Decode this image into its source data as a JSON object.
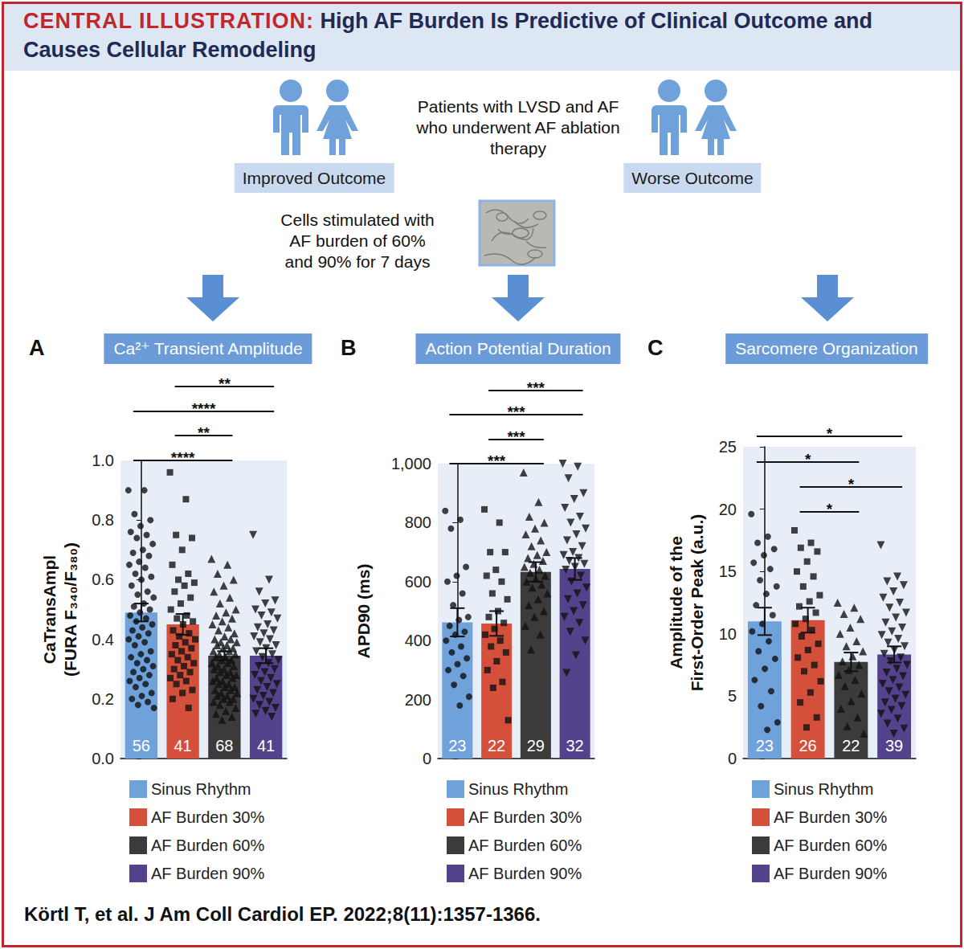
{
  "header": {
    "label": "CENTRAL ILLUSTRATION:",
    "title": "High AF Burden Is Predictive of Clinical Outcome and Causes Cellular Remodeling"
  },
  "diagram": {
    "cohort": "Patients with LVSD and AF who underwent AF ablation therapy",
    "outcomes": [
      "Improved Outcome",
      "Worse Outcome"
    ],
    "stimulation": "Cells stimulated with AF burden of 60% and 90% for 7 days"
  },
  "chart_data": [
    {
      "type": "bar",
      "panel": "A",
      "title": "Ca²⁺ Transient Amplitude",
      "ylabel": [
        "CaTransAmpl",
        "(FURA F₃₄₀/F₃₈₀)"
      ],
      "ylim": [
        0,
        1
      ],
      "yticks": [
        {
          "value": 0,
          "label": "0.0"
        },
        0.2,
        0.4,
        0.6,
        0.8,
        {
          "value": 1,
          "label": "1.0"
        }
      ],
      "grid": false,
      "legend": "bottom",
      "tick_labels": "y",
      "data_labels": false,
      "series": [
        {
          "name": "Sinus Rhythm",
          "color": "#6fa1db",
          "marker": "circle",
          "values": [
            0.49
          ],
          "errors": [
            0.03
          ],
          "n": [
            56
          ],
          "points": [
            0.9,
            0.9,
            0.82,
            0.8,
            0.78,
            0.76,
            0.75,
            0.74,
            0.72,
            0.7,
            0.69,
            0.68,
            0.66,
            0.65,
            0.64,
            0.62,
            0.61,
            0.6,
            0.58,
            0.56,
            0.55,
            0.54,
            0.52,
            0.51,
            0.5,
            0.49,
            0.48,
            0.47,
            0.46,
            0.45,
            0.44,
            0.43,
            0.42,
            0.41,
            0.4,
            0.39,
            0.38,
            0.36,
            0.35,
            0.34,
            0.33,
            0.32,
            0.31,
            0.3,
            0.29,
            0.28,
            0.27,
            0.26,
            0.25,
            0.24,
            0.22,
            0.21,
            0.2,
            0.19,
            0.18,
            0.17
          ]
        },
        {
          "name": "AF Burden 30%",
          "color": "#d5503a",
          "marker": "square",
          "values": [
            0.45
          ],
          "errors": [
            0.035
          ],
          "n": [
            41
          ],
          "points": [
            0.96,
            0.87,
            0.75,
            0.74,
            0.7,
            0.65,
            0.62,
            0.6,
            0.59,
            0.58,
            0.56,
            0.54,
            0.52,
            0.5,
            0.48,
            0.47,
            0.46,
            0.45,
            0.43,
            0.42,
            0.41,
            0.4,
            0.39,
            0.38,
            0.37,
            0.36,
            0.35,
            0.34,
            0.33,
            0.32,
            0.31,
            0.3,
            0.29,
            0.28,
            0.27,
            0.26,
            0.25,
            0.23,
            0.22,
            0.2,
            0.17
          ]
        },
        {
          "name": "AF Burden 60%",
          "color": "#3b3b3b",
          "marker": "triangle",
          "values": [
            0.345
          ],
          "errors": [
            0.015
          ],
          "n": [
            68
          ],
          "points": [
            0.67,
            0.65,
            0.62,
            0.6,
            0.58,
            0.56,
            0.54,
            0.52,
            0.5,
            0.49,
            0.48,
            0.47,
            0.46,
            0.45,
            0.44,
            0.43,
            0.42,
            0.41,
            0.4,
            0.4,
            0.39,
            0.39,
            0.38,
            0.38,
            0.37,
            0.37,
            0.36,
            0.36,
            0.35,
            0.35,
            0.34,
            0.34,
            0.33,
            0.33,
            0.32,
            0.32,
            0.31,
            0.31,
            0.3,
            0.3,
            0.29,
            0.29,
            0.28,
            0.28,
            0.27,
            0.27,
            0.26,
            0.26,
            0.25,
            0.25,
            0.24,
            0.24,
            0.23,
            0.23,
            0.22,
            0.22,
            0.21,
            0.21,
            0.2,
            0.2,
            0.19,
            0.19,
            0.18,
            0.17,
            0.16,
            0.15,
            0.14,
            0.13
          ]
        },
        {
          "name": "AF Burden 90%",
          "color": "#54438c",
          "marker": "triangle_down",
          "values": [
            0.345
          ],
          "errors": [
            0.025
          ],
          "n": [
            41
          ],
          "points": [
            0.75,
            0.6,
            0.56,
            0.53,
            0.52,
            0.5,
            0.49,
            0.48,
            0.47,
            0.45,
            0.44,
            0.43,
            0.42,
            0.41,
            0.4,
            0.39,
            0.38,
            0.37,
            0.36,
            0.35,
            0.34,
            0.33,
            0.32,
            0.31,
            0.3,
            0.29,
            0.28,
            0.27,
            0.26,
            0.25,
            0.24,
            0.23,
            0.22,
            0.21,
            0.2,
            0.19,
            0.18,
            0.17,
            0.16,
            0.15,
            0.14
          ]
        }
      ],
      "annotations": [
        {
          "from": 1,
          "to": 3,
          "label": "**"
        },
        {
          "from": 0,
          "to": 3,
          "label": "****"
        },
        {
          "from": 1,
          "to": 2,
          "label": "**"
        },
        {
          "from": 0,
          "to": 2,
          "label": "****"
        }
      ]
    },
    {
      "type": "bar",
      "panel": "B",
      "title": "Action Potential Duration",
      "ylabel": [
        "APD90 (ms)"
      ],
      "ylim": [
        0,
        1000
      ],
      "yticks": [
        0,
        200,
        400,
        600,
        800,
        {
          "value": 1000,
          "label": "1,000"
        }
      ],
      "grid": false,
      "legend": "bottom",
      "tick_labels": "y",
      "data_labels": false,
      "series": [
        {
          "name": "Sinus Rhythm",
          "color": "#6fa1db",
          "marker": "circle",
          "values": [
            462
          ],
          "errors": [
            48
          ],
          "n": [
            23
          ],
          "points": [
            840,
            810,
            780,
            650,
            620,
            600,
            560,
            520,
            480,
            470,
            450,
            430,
            420,
            400,
            380,
            360,
            340,
            320,
            300,
            280,
            250,
            210,
            180
          ]
        },
        {
          "name": "AF Burden 30%",
          "color": "#d5503a",
          "marker": "square",
          "values": [
            458
          ],
          "errors": [
            42
          ],
          "n": [
            22
          ],
          "points": [
            845,
            800,
            700,
            700,
            640,
            620,
            600,
            560,
            540,
            500,
            480,
            460,
            440,
            420,
            400,
            380,
            360,
            330,
            300,
            260,
            240,
            130
          ]
        },
        {
          "name": "AF Burden 60%",
          "color": "#3b3b3b",
          "marker": "triangle",
          "values": [
            633
          ],
          "errors": [
            33
          ],
          "n": [
            29
          ],
          "points": [
            970,
            870,
            820,
            800,
            780,
            760,
            740,
            720,
            700,
            690,
            680,
            670,
            660,
            650,
            640,
            630,
            620,
            610,
            600,
            590,
            580,
            560,
            540,
            520,
            500,
            480,
            450,
            420,
            370
          ]
        },
        {
          "name": "AF Burden 90%",
          "color": "#54438c",
          "marker": "triangle_down",
          "values": [
            643
          ],
          "errors": [
            37
          ],
          "n": [
            32
          ],
          "points": [
            1000,
            990,
            950,
            900,
            880,
            850,
            820,
            800,
            780,
            760,
            740,
            720,
            700,
            690,
            680,
            670,
            660,
            650,
            640,
            620,
            600,
            580,
            560,
            540,
            520,
            500,
            480,
            460,
            430,
            400,
            350,
            290
          ]
        }
      ],
      "annotations": [
        {
          "from": 1,
          "to": 3,
          "label": "***"
        },
        {
          "from": 0,
          "to": 3,
          "label": "***"
        },
        {
          "from": 1,
          "to": 2,
          "label": "***"
        },
        {
          "from": 0,
          "to": 2,
          "label": "***"
        }
      ]
    },
    {
      "type": "bar",
      "panel": "C",
      "title": "Sarcomere Organization",
      "ylabel": [
        "Amplitude of the",
        "First-Order Peak (a.u.)"
      ],
      "ylim": [
        0,
        25
      ],
      "yticks": [
        0,
        5,
        10,
        15,
        20,
        25
      ],
      "grid": false,
      "legend": "bottom",
      "tick_labels": "y",
      "data_labels": false,
      "series": [
        {
          "name": "Sinus Rhythm",
          "color": "#6fa1db",
          "marker": "circle",
          "values": [
            11.0
          ],
          "errors": [
            1.1
          ],
          "n": [
            23
          ],
          "points": [
            19.6,
            17.8,
            17.3,
            16.8,
            16.3,
            15.7,
            15.2,
            14.3,
            13.8,
            13.2,
            12.3,
            11.5,
            10.8,
            10.2,
            9.4,
            8.6,
            8.0,
            7.2,
            6.3,
            5.4,
            4.2,
            2.9,
            2.3
          ]
        },
        {
          "name": "AF Burden 30%",
          "color": "#d5503a",
          "marker": "square",
          "values": [
            11.1
          ],
          "errors": [
            1.0
          ],
          "n": [
            26
          ],
          "points": [
            18.3,
            17.3,
            16.9,
            16.6,
            15.8,
            15.0,
            14.6,
            13.8,
            13.1,
            12.6,
            12.2,
            11.7,
            11.2,
            10.8,
            10.3,
            9.8,
            9.2,
            8.7,
            8.1,
            7.5,
            7.0,
            6.2,
            5.3,
            4.5,
            3.3,
            2.5
          ]
        },
        {
          "name": "AF Burden 60%",
          "color": "#3b3b3b",
          "marker": "triangle",
          "values": [
            7.75
          ],
          "errors": [
            0.75
          ],
          "n": [
            22
          ],
          "points": [
            12.5,
            12.1,
            11.6,
            11.2,
            10.5,
            10.0,
            9.4,
            9.0,
            8.6,
            8.2,
            7.8,
            7.5,
            7.1,
            6.7,
            6.3,
            5.8,
            5.2,
            4.6,
            4.0,
            3.3,
            2.6,
            2.0
          ]
        },
        {
          "name": "AF Burden 90%",
          "color": "#54438c",
          "marker": "triangle_down",
          "values": [
            8.35
          ],
          "errors": [
            0.65
          ],
          "n": [
            39
          ],
          "points": [
            17.1,
            14.6,
            14.2,
            13.9,
            13.4,
            12.9,
            12.5,
            12.1,
            11.7,
            11.3,
            10.9,
            10.5,
            10.2,
            9.9,
            9.6,
            9.3,
            9.0,
            8.7,
            8.4,
            8.1,
            7.8,
            7.5,
            7.2,
            6.9,
            6.6,
            6.3,
            6.0,
            5.7,
            5.4,
            5.1,
            4.8,
            4.5,
            4.2,
            3.9,
            3.6,
            3.2,
            2.8,
            2.4,
            2.0
          ]
        }
      ],
      "annotations": [
        {
          "from": 0,
          "to": 3,
          "label": "*"
        },
        {
          "from": 0,
          "to": 2,
          "label": "*"
        },
        {
          "from": 1,
          "to": 3,
          "label": "*"
        },
        {
          "from": 1,
          "to": 2,
          "label": "*"
        }
      ]
    }
  ],
  "citation": "Körtl T, et al. J Am Coll Cardiol EP. 2022;8(11):1357-1366."
}
